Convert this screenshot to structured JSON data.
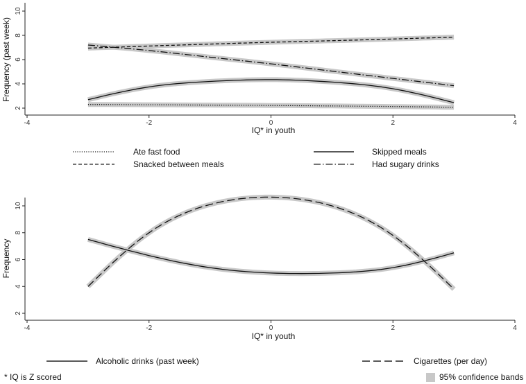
{
  "chart_data": [
    {
      "type": "line",
      "xlabel": "IQ* in youth",
      "ylabel": "Frequency (past week)",
      "xlim": [
        -4,
        4
      ],
      "ylim": [
        1.5,
        11.5
      ],
      "xticks": [
        -4,
        -2,
        0,
        2,
        4
      ],
      "yticks": [
        2,
        4,
        6,
        8,
        10
      ],
      "x": [
        -3,
        -2,
        -1,
        0,
        1,
        2,
        3
      ],
      "series": [
        {
          "name": "Ate fast food",
          "dash": "dotted",
          "values": [
            2.3,
            2.28,
            2.25,
            2.22,
            2.18,
            2.13,
            2.07
          ]
        },
        {
          "name": "Skipped meals",
          "dash": "solid",
          "values": [
            2.7,
            3.75,
            4.2,
            4.35,
            4.15,
            3.6,
            2.45
          ]
        },
        {
          "name": "Snacked between meals",
          "dash": "dashed",
          "values": [
            6.95,
            7.12,
            7.28,
            7.43,
            7.56,
            7.7,
            7.85
          ]
        },
        {
          "name": "Had sugary drinks",
          "dash": "longdashdot",
          "values": [
            7.2,
            6.75,
            6.2,
            5.65,
            5.05,
            4.45,
            3.85
          ]
        }
      ],
      "legend": [
        {
          "label": "Ate fast food",
          "dash": "dotted"
        },
        {
          "label": "Skipped meals",
          "dash": "solid"
        },
        {
          "label": "Snacked between meals",
          "dash": "dashed"
        },
        {
          "label": "Had sugary drinks",
          "dash": "longdashdot"
        }
      ]
    },
    {
      "type": "line",
      "xlabel": "IQ* in youth",
      "ylabel": "Frequency",
      "xlim": [
        -4,
        4
      ],
      "ylim": [
        1.5,
        11.5
      ],
      "xticks": [
        -4,
        -2,
        0,
        2,
        4
      ],
      "yticks": [
        2,
        4,
        6,
        8,
        10
      ],
      "x": [
        -3,
        -2,
        -1,
        0,
        1,
        2,
        3
      ],
      "series": [
        {
          "name": "Alcoholic drinks (past week)",
          "dash": "solid",
          "values": [
            7.5,
            6.3,
            5.4,
            5.0,
            5.0,
            5.4,
            6.5
          ]
        },
        {
          "name": "Cigarettes (per day)",
          "dash": "longdash",
          "values": [
            4.0,
            8.0,
            10.1,
            10.65,
            10.0,
            7.8,
            3.8
          ]
        }
      ],
      "legend": [
        {
          "label": "Alcoholic drinks (past week)",
          "dash": "solid"
        },
        {
          "label": "Cigarettes (per day)",
          "dash": "longdash"
        }
      ]
    }
  ],
  "footnote": "* IQ is Z scored",
  "confidence_label": "95% confidence bands",
  "band_color": "#c8c8c8",
  "line_color": "#111111"
}
